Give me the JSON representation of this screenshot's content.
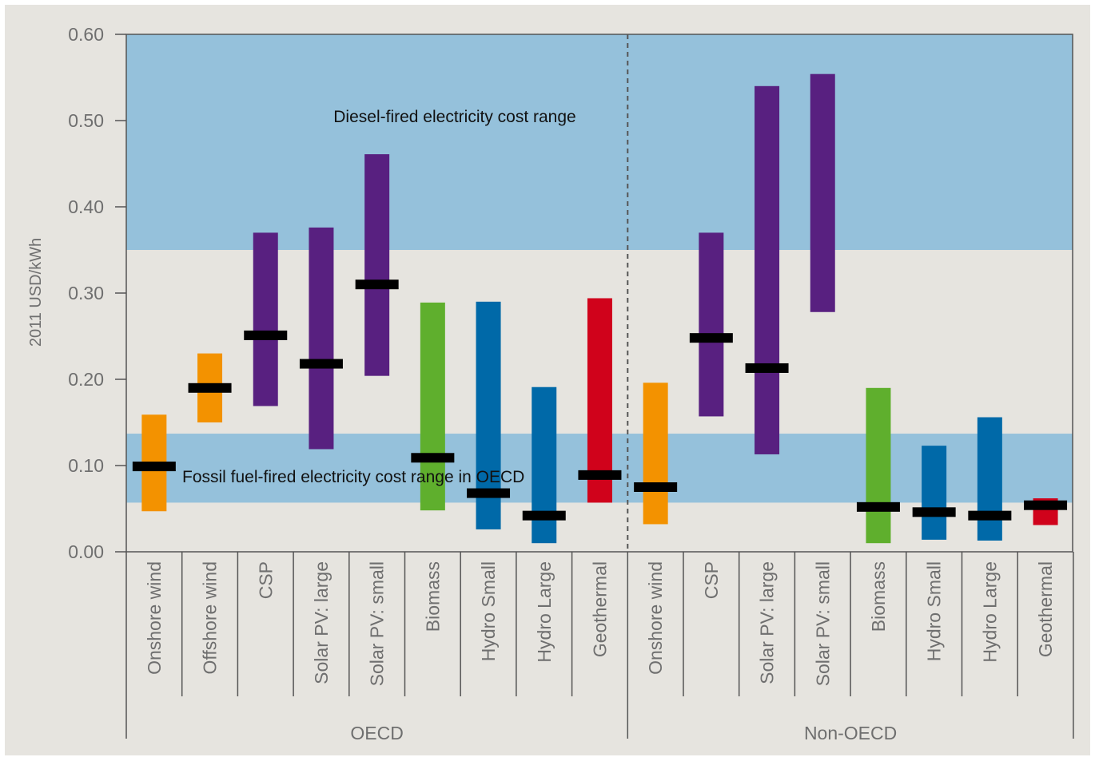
{
  "chart_data": {
    "type": "range_bar",
    "ylabel": "2011 USD/kWh",
    "ylim": [
      0,
      0.6
    ],
    "yticks": [
      "0.00",
      "0.10",
      "0.20",
      "0.30",
      "0.40",
      "0.50",
      "0.60"
    ],
    "bands": [
      {
        "name": "diesel",
        "label": "Diesel-fired electricity cost range",
        "low": 0.35,
        "high": 0.6
      },
      {
        "name": "fossil",
        "label": "Fossil fuel-fired electricity cost range in OECD",
        "low": 0.057,
        "high": 0.137
      }
    ],
    "groups": [
      {
        "name": "OECD",
        "label": "OECD"
      },
      {
        "name": "non-oecd",
        "label": "Non-OECD"
      }
    ],
    "categories": [
      {
        "label": "Onshore wind",
        "group": "OECD",
        "low": 0.047,
        "high": 0.159,
        "avg": 0.099,
        "color": "#F39200"
      },
      {
        "label": "Offshore wind",
        "group": "OECD",
        "low": 0.15,
        "high": 0.23,
        "avg": 0.19,
        "color": "#F39200"
      },
      {
        "label": "CSP",
        "group": "OECD",
        "low": 0.169,
        "high": 0.37,
        "avg": 0.251,
        "color": "#582080"
      },
      {
        "label": "Solar PV: large",
        "group": "OECD",
        "low": 0.119,
        "high": 0.376,
        "avg": 0.218,
        "color": "#582080"
      },
      {
        "label": "Solar PV: small",
        "group": "OECD",
        "low": 0.204,
        "high": 0.461,
        "avg": 0.31,
        "color": "#582080"
      },
      {
        "label": "Biomass",
        "group": "OECD",
        "low": 0.048,
        "high": 0.289,
        "avg": 0.109,
        "color": "#5FAF2D"
      },
      {
        "label": "Hydro Small",
        "group": "OECD",
        "low": 0.026,
        "high": 0.29,
        "avg": 0.068,
        "color": "#0069A8"
      },
      {
        "label": "Hydro Large",
        "group": "OECD",
        "low": 0.01,
        "high": 0.191,
        "avg": 0.042,
        "color": "#0069A8"
      },
      {
        "label": "Geothermal",
        "group": "OECD",
        "low": 0.057,
        "high": 0.294,
        "avg": 0.089,
        "color": "#D0021B"
      },
      {
        "label": "Onshore wind",
        "group": "Non-OECD",
        "low": 0.032,
        "high": 0.196,
        "avg": 0.075,
        "color": "#F39200"
      },
      {
        "label": "CSP",
        "group": "Non-OECD",
        "low": 0.157,
        "high": 0.37,
        "avg": 0.248,
        "color": "#582080"
      },
      {
        "label": "Solar PV: large",
        "group": "Non-OECD",
        "low": 0.113,
        "high": 0.54,
        "avg": 0.213,
        "color": "#582080"
      },
      {
        "label": "Solar PV: small",
        "group": "Non-OECD",
        "low": 0.278,
        "high": 0.554,
        "avg": null,
        "color": "#582080"
      },
      {
        "label": "Biomass",
        "group": "Non-OECD",
        "low": 0.01,
        "high": 0.19,
        "avg": 0.052,
        "color": "#5FAF2D"
      },
      {
        "label": "Hydro Small",
        "group": "Non-OECD",
        "low": 0.014,
        "high": 0.123,
        "avg": 0.046,
        "color": "#0069A8"
      },
      {
        "label": "Hydro Large",
        "group": "Non-OECD",
        "low": 0.013,
        "high": 0.156,
        "avg": 0.042,
        "color": "#0069A8"
      },
      {
        "label": "Geothermal",
        "group": "Non-OECD",
        "low": 0.031,
        "high": 0.062,
        "avg": 0.054,
        "color": "#D0021B"
      }
    ],
    "colors": {
      "background": "#E6E4DF",
      "band": "#95C1DB",
      "average_marker": "#000000",
      "axis": "#555555"
    },
    "grid": false,
    "legend": "none"
  }
}
